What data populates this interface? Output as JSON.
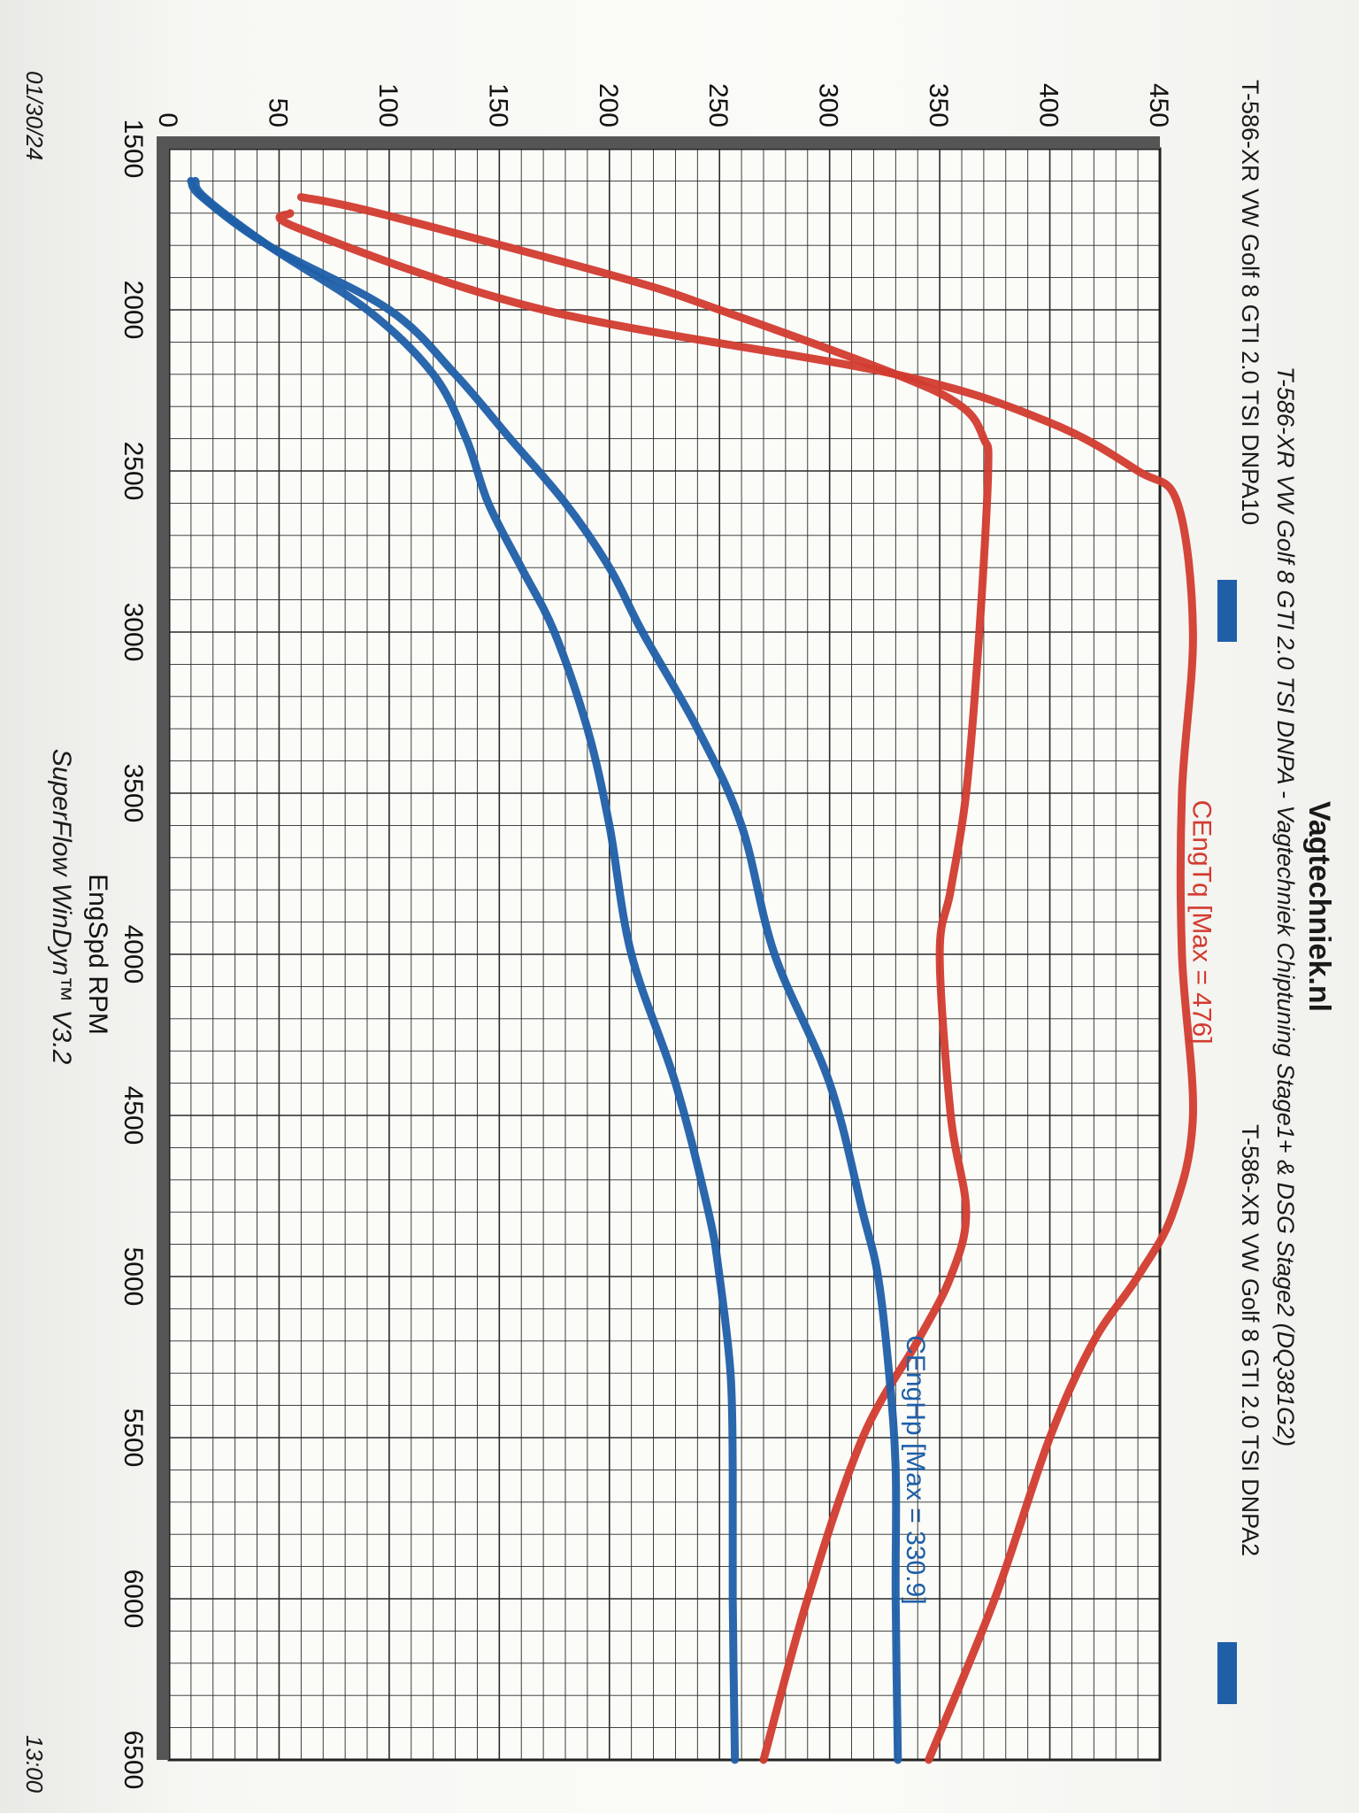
{
  "header": {
    "title": "Vagtechniek.nl",
    "subtitle": "T-586-XR VW Golf 8 GTI 2.0 TSI DNPA - Vagtechniek Chiptuning Stage1+ & DSG Stage2 (DQ381G2)",
    "run_a": "T-586-XR VW Golf 8 GTI 2.0 TSI DNPA10",
    "run_b": "T-586-XR VW Golf 8 GTI 2.0 TSI DNPA2"
  },
  "footer": {
    "software": "SuperFlow WinDyn™ V3.2",
    "date": "01/30/24",
    "time": "13:00"
  },
  "colors": {
    "torque": "#d23b2f",
    "power": "#1f5fa8",
    "grid": "#2a2a2a",
    "frame": "#555555"
  },
  "chart_data": {
    "type": "line",
    "xlabel": "EngSpd RPM",
    "ylabel": "",
    "xlim": [
      1500,
      6500
    ],
    "ylim": [
      0,
      450
    ],
    "xticks": [
      "1500",
      "2000",
      "2500",
      "3000",
      "3500",
      "4000",
      "4500",
      "5000",
      "5500",
      "6000",
      "6500"
    ],
    "yticks": [
      "0",
      "50",
      "100",
      "150",
      "200",
      "250",
      "300",
      "350",
      "400",
      "450"
    ],
    "annotations": [
      {
        "text": "CEngTq [Max = 476]",
        "x": 3900,
        "y": 465,
        "color": "torque"
      },
      {
        "text": "CEngHp [Max = 330.9]",
        "x": 5600,
        "y": 335,
        "color": "power"
      }
    ],
    "series": [
      {
        "name": "CEngTq DNPA2",
        "color": "torque",
        "x": [
          1700,
          1750,
          2000,
          2200,
          2350,
          2500,
          2600,
          3000,
          3500,
          4000,
          4500,
          4800,
          5000,
          5200,
          5500,
          6000,
          6500
        ],
        "y": [
          55,
          60,
          170,
          330,
          400,
          440,
          458,
          465,
          460,
          460,
          465,
          456,
          440,
          420,
          400,
          375,
          345
        ]
      },
      {
        "name": "CEngTq DNPA10",
        "color": "torque",
        "x": [
          1650,
          1700,
          1900,
          2000,
          2200,
          2300,
          2400,
          2500,
          3000,
          3500,
          3800,
          4000,
          4500,
          4800,
          5000,
          5200,
          5500,
          6000,
          6500
        ],
        "y": [
          60,
          95,
          205,
          250,
          330,
          360,
          370,
          372,
          368,
          362,
          355,
          350,
          355,
          362,
          355,
          340,
          315,
          290,
          270
        ]
      },
      {
        "name": "CEngHp DNPA2",
        "color": "power",
        "x": [
          1600,
          1650,
          1800,
          2000,
          2200,
          2400,
          2600,
          2800,
          3000,
          3300,
          3600,
          4000,
          4400,
          4800,
          5000,
          5300,
          5600,
          6000,
          6500
        ],
        "y": [
          10,
          15,
          45,
          100,
          130,
          155,
          180,
          200,
          215,
          240,
          260,
          275,
          300,
          315,
          322,
          327,
          330,
          330,
          331
        ]
      },
      {
        "name": "CEngHp DNPA10",
        "color": "power",
        "x": [
          1600,
          1650,
          1800,
          2000,
          2200,
          2400,
          2600,
          2800,
          3000,
          3300,
          3600,
          4000,
          4400,
          4800,
          5000,
          5300,
          5600,
          6000,
          6500
        ],
        "y": [
          12,
          16,
          45,
          90,
          120,
          135,
          145,
          160,
          175,
          190,
          200,
          210,
          230,
          245,
          250,
          255,
          256,
          256,
          257
        ]
      }
    ]
  }
}
